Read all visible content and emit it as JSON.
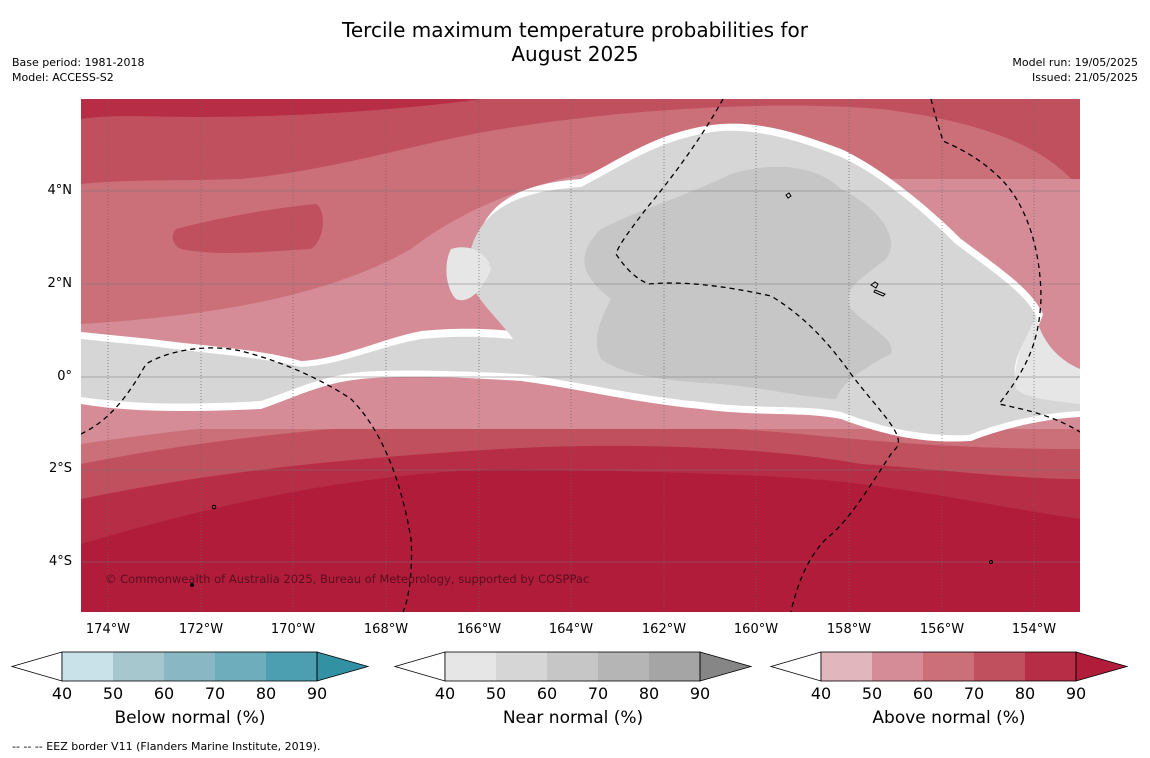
{
  "title": {
    "line1": "Tercile maximum temperature probabilities for",
    "line2": "August 2025"
  },
  "meta": {
    "base_period": "Base period: 1981-2018",
    "model": "Model: ACCESS-S2",
    "model_run": "Model run: 19/05/2025",
    "issued": "Issued: 21/05/2025"
  },
  "map": {
    "copyright": "© Commonwealth of Australia 2025, Bureau of Meteorology, supported by COSPPac",
    "lat_ticks": [
      "4°N",
      "2°N",
      "0°",
      "2°S",
      "4°S"
    ],
    "lon_ticks": [
      "174°W",
      "172°W",
      "170°W",
      "168°W",
      "166°W",
      "164°W",
      "162°W",
      "160°W",
      "158°W",
      "156°W",
      "154°W"
    ],
    "boundary_legend": "-- -- -- EEZ border V11 (Flanders Marine Institute, 2019)."
  },
  "colorbars": [
    {
      "label": "Below normal (%)",
      "ticks": [
        "40",
        "50",
        "60",
        "70",
        "80",
        "90"
      ],
      "colors": [
        "#c9e1e8",
        "#a6c7cd",
        "#8ab7c4",
        "#6eaebc",
        "#4b9fb0",
        "#3391a4"
      ]
    },
    {
      "label": "Near normal (%)",
      "ticks": [
        "40",
        "50",
        "60",
        "70",
        "80",
        "90"
      ],
      "colors": [
        "#e6e6e6",
        "#d6d6d6",
        "#c6c6c6",
        "#b5b5b5",
        "#a5a5a5",
        "#868686"
      ]
    },
    {
      "label": "Above normal (%)",
      "ticks": [
        "40",
        "50",
        "60",
        "70",
        "80",
        "90"
      ],
      "colors": [
        "#e1b7bd",
        "#d68c97",
        "#cb6f79",
        "#c1505e",
        "#b72d45",
        "#b11c3b"
      ]
    }
  ]
}
